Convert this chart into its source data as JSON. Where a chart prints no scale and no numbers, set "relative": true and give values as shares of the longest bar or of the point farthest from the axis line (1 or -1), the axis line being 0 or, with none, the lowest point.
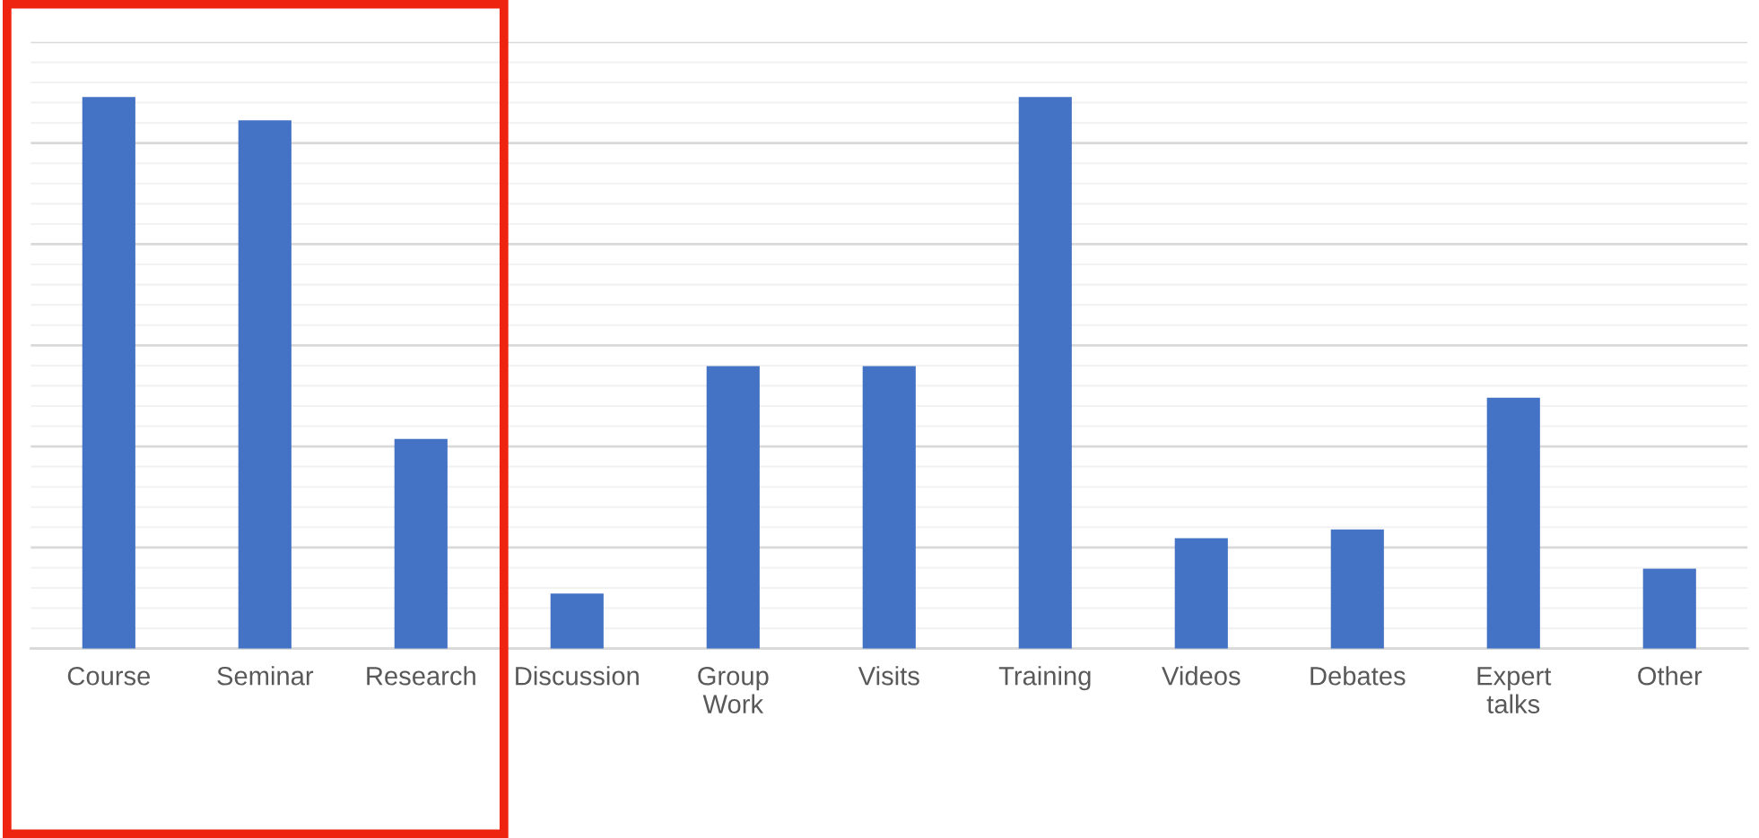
{
  "chart_data": {
    "type": "bar",
    "relative": true,
    "grid": "y",
    "color": "#4472c4",
    "categories": [
      "Course",
      "Seminar",
      "Research",
      "Discussion",
      "Group\nWork",
      "Visits",
      "Training",
      "Videos",
      "Debates",
      "Expert\ntalks",
      "Other"
    ],
    "values": [
      1,
      0.958,
      0.38,
      0.1,
      0.512,
      0.512,
      1,
      0.2,
      0.216,
      0.455,
      0.145
    ]
  }
}
